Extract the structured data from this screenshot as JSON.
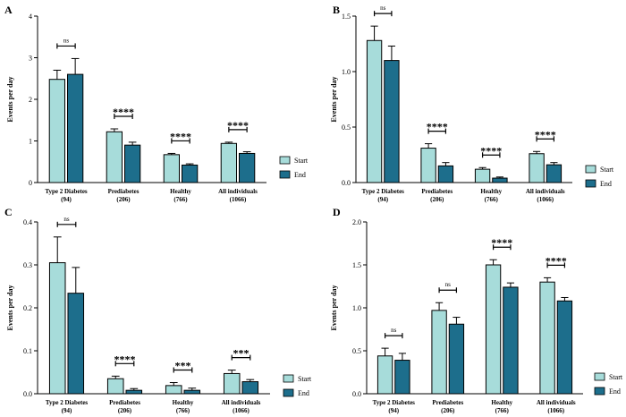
{
  "colors": {
    "start": "#a7dcda",
    "end": "#1d6e8c"
  },
  "legend": {
    "start_label": "Start",
    "end_label": "End"
  },
  "chart_data": [
    {
      "panel": "A",
      "type": "bar",
      "ylabel": "Events per day",
      "ylim": [
        0,
        4
      ],
      "yticks": [
        0,
        1,
        2,
        3,
        4
      ],
      "ytick_labels": [
        "0",
        "1",
        "2",
        "3",
        "4"
      ],
      "categories": [
        "Type 2 Diabetes",
        "Prediabetes",
        "Healthy",
        "All individuals"
      ],
      "category_counts": [
        "(94)",
        "(206)",
        "(766)",
        "(1066)"
      ],
      "series": [
        {
          "name": "Start",
          "values": [
            2.48,
            1.22,
            0.67,
            0.94
          ],
          "errors": [
            0.22,
            0.07,
            0.03,
            0.03
          ]
        },
        {
          "name": "End",
          "values": [
            2.6,
            0.9,
            0.42,
            0.7
          ],
          "errors": [
            0.38,
            0.07,
            0.03,
            0.04
          ]
        }
      ],
      "significance": [
        "ns",
        "****",
        "****",
        "****"
      ],
      "legend_position": "right"
    },
    {
      "panel": "B",
      "type": "bar",
      "ylabel": "Events per day",
      "ylim": [
        0,
        1.5
      ],
      "yticks": [
        0,
        0.5,
        1,
        1.5
      ],
      "ytick_labels": [
        "0.0",
        "0.5",
        "1.0",
        "1.5"
      ],
      "categories": [
        "Type 2 Diabetes",
        "Prediabetes",
        "Healthy",
        "All individuals"
      ],
      "category_counts": [
        "(94)",
        "(206)",
        "(766)",
        "(1066)"
      ],
      "series": [
        {
          "name": "Start",
          "values": [
            1.28,
            0.31,
            0.12,
            0.26
          ],
          "errors": [
            0.13,
            0.04,
            0.015,
            0.02
          ]
        },
        {
          "name": "End",
          "values": [
            1.1,
            0.15,
            0.04,
            0.16
          ],
          "errors": [
            0.13,
            0.03,
            0.01,
            0.02
          ]
        }
      ],
      "significance": [
        "ns",
        "****",
        "****",
        "****"
      ],
      "legend_position": "right"
    },
    {
      "panel": "C",
      "type": "bar",
      "ylabel": "Events per day",
      "ylim": [
        0,
        0.4
      ],
      "yticks": [
        0,
        0.1,
        0.2,
        0.3,
        0.4
      ],
      "ytick_labels": [
        "0.0",
        "0.1",
        "0.2",
        "0.3",
        "0.4"
      ],
      "categories": [
        "Type 2 Diabetes",
        "Prediabetes",
        "Healthy",
        "All individuals"
      ],
      "category_counts": [
        "(94)",
        "(206)",
        "(766)",
        "(1066)"
      ],
      "series": [
        {
          "name": "Start",
          "values": [
            0.305,
            0.035,
            0.019,
            0.047
          ],
          "errors": [
            0.06,
            0.006,
            0.007,
            0.008
          ]
        },
        {
          "name": "End",
          "values": [
            0.234,
            0.008,
            0.008,
            0.028
          ],
          "errors": [
            0.06,
            0.004,
            0.005,
            0.005
          ]
        }
      ],
      "significance": [
        "ns",
        "****",
        "***",
        "***"
      ],
      "legend_position": "right"
    },
    {
      "panel": "D",
      "type": "bar",
      "ylabel": "Events per day",
      "ylim": [
        0,
        2
      ],
      "yticks": [
        0,
        0.5,
        1,
        1.5,
        2
      ],
      "ytick_labels": [
        "0.0",
        "0.5",
        "1.0",
        "1.5",
        "2.0"
      ],
      "categories": [
        "Type 2 Diabetes",
        "Prediabetes",
        "Healthy",
        "All individuals"
      ],
      "category_counts": [
        "(94)",
        "(206)",
        "(766)",
        "(1066)"
      ],
      "series": [
        {
          "name": "Start",
          "values": [
            0.44,
            0.97,
            1.5,
            1.3
          ],
          "errors": [
            0.09,
            0.09,
            0.06,
            0.05
          ]
        },
        {
          "name": "End",
          "values": [
            0.39,
            0.81,
            1.24,
            1.08
          ],
          "errors": [
            0.08,
            0.08,
            0.05,
            0.04
          ]
        }
      ],
      "significance": [
        "ns",
        "ns",
        "****",
        "****"
      ],
      "legend_position": "right"
    }
  ]
}
